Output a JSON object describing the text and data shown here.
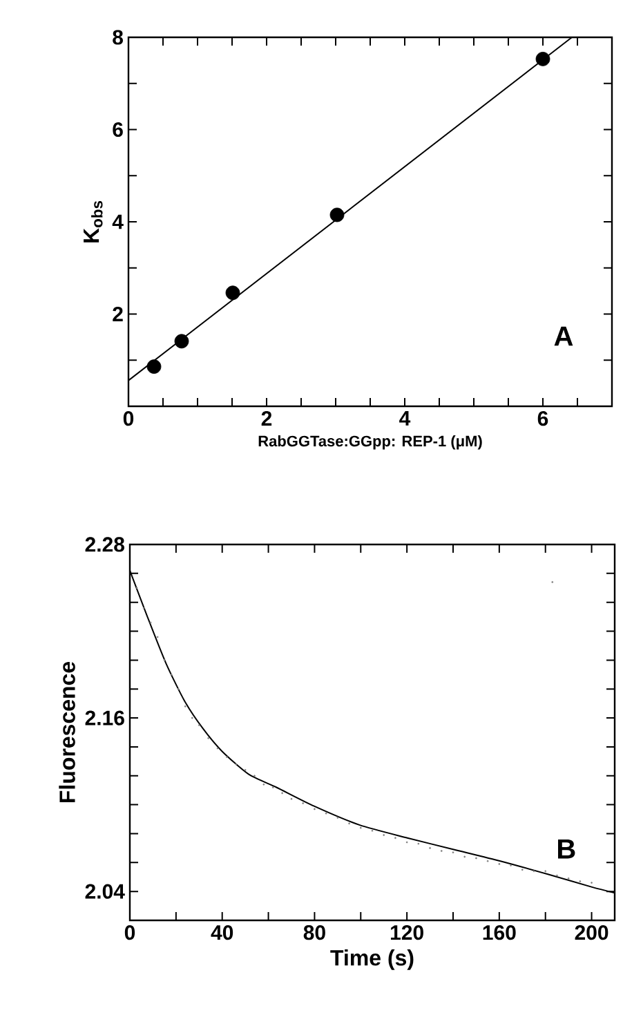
{
  "chart_data": [
    {
      "type": "scatter",
      "xlabel": "RabGGTase:GGpp: REP-1 (μM)",
      "ylabel": "K$_{obs}$",
      "xlim": [
        0,
        7
      ],
      "ylim": [
        0,
        8
      ],
      "xticks": [
        0,
        {
          "value": 0.5,
          "label": null
        },
        {
          "value": 1,
          "label": null
        },
        {
          "value": 1.5,
          "label": null
        },
        2,
        {
          "value": 2.5,
          "label": null
        },
        {
          "value": 3,
          "label": null
        },
        {
          "value": 3.5,
          "label": null
        },
        4,
        {
          "value": 4.5,
          "label": null
        },
        {
          "value": 5,
          "label": null
        },
        {
          "value": 5.5,
          "label": null
        },
        6,
        {
          "value": 6.5,
          "label": null
        }
      ],
      "yticks": [
        {
          "value": 0,
          "label": null
        },
        {
          "value": 1,
          "label": null
        },
        2,
        {
          "value": 3,
          "label": null
        },
        4,
        {
          "value": 5,
          "label": null
        },
        6,
        {
          "value": 7,
          "label": null
        },
        8
      ],
      "annotations": [
        "A"
      ],
      "series": [
        {
          "marker": "circle",
          "color": "#000000",
          "x": [
            0.37,
            0.77,
            1.51,
            3.02,
            6.0
          ],
          "values": [
            0.86,
            1.41,
            2.46,
            4.15,
            7.53
          ]
        },
        {
          "type": "line",
          "color": "#000000",
          "marker": "none",
          "x": [
            0,
            6.42
          ],
          "values": [
            0.56,
            8.0
          ]
        }
      ]
    },
    {
      "type": "scatter",
      "xlabel": "Time (s)",
      "ylabel": "Fluorescence",
      "xlim": [
        0,
        210
      ],
      "ylim": [
        2.02,
        2.28
      ],
      "xticks": [
        0,
        {
          "value": 20,
          "label": null
        },
        40,
        {
          "value": 60,
          "label": null
        },
        80,
        {
          "value": 100,
          "label": null
        },
        120,
        {
          "value": 140,
          "label": null
        },
        160,
        {
          "value": 180,
          "label": null
        },
        200
      ],
      "yticks": [
        2.04,
        {
          "value": 2.06,
          "label": null
        },
        {
          "value": 2.08,
          "label": null
        },
        {
          "value": 2.1,
          "label": null
        },
        {
          "value": 2.12,
          "label": null
        },
        {
          "value": 2.14,
          "label": null
        },
        2.16,
        {
          "value": 2.18,
          "label": null
        },
        {
          "value": 2.2,
          "label": null
        },
        {
          "value": 2.22,
          "label": null
        },
        {
          "value": 2.24,
          "label": null
        },
        {
          "value": 2.26,
          "label": null
        },
        2.28
      ],
      "annotations": [
        "B"
      ],
      "series": [
        {
          "marker": "circle",
          "color": "#808080",
          "x": [
            3,
            6,
            9,
            12,
            15,
            18,
            21,
            24,
            27,
            30,
            34,
            38,
            42,
            46,
            50,
            54,
            58,
            62,
            66,
            70,
            75,
            80,
            85,
            90,
            95,
            100,
            105,
            110,
            115,
            120,
            125,
            130,
            135,
            140,
            145,
            150,
            155,
            160,
            165,
            170,
            175,
            180,
            183,
            185,
            190,
            195,
            200
          ],
          "values": [
            2.25,
            2.236,
            2.226,
            2.216,
            2.2,
            2.19,
            2.18,
            2.168,
            2.16,
            2.155,
            2.146,
            2.139,
            2.133,
            2.128,
            2.124,
            2.12,
            2.114,
            2.112,
            2.108,
            2.104,
            2.101,
            2.097,
            2.094,
            2.091,
            2.087,
            2.084,
            2.082,
            2.079,
            2.077,
            2.074,
            2.073,
            2.07,
            2.068,
            2.067,
            2.064,
            2.063,
            2.061,
            2.059,
            2.058,
            2.055,
            2.054,
            2.054,
            2.254,
            2.051,
            2.049,
            2.047,
            2.046
          ]
        },
        {
          "type": "line",
          "color": "#000000",
          "marker": "none",
          "x": [
            0,
            7.6,
            15.6,
            23.6,
            31.5,
            39.9,
            51.5,
            63.5,
            79.8,
            99.4,
            120.2,
            140.3,
            160.5,
            180.8,
            200.2,
            210
          ],
          "values": [
            2.262,
            2.23,
            2.198,
            2.172,
            2.153,
            2.137,
            2.121,
            2.112,
            2.099,
            2.086,
            2.077,
            2.069,
            2.061,
            2.052,
            2.043,
            2.039
          ]
        }
      ]
    }
  ]
}
